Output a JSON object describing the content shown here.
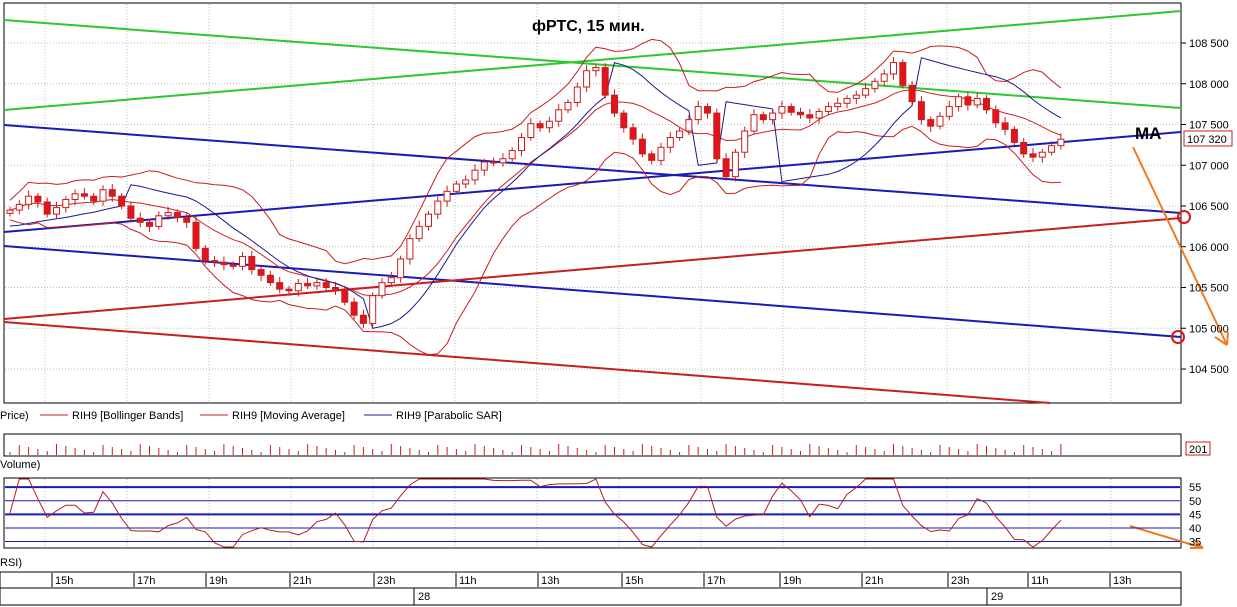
{
  "chart_data": {
    "type": "candlestick",
    "title": "фРТС,  15 мин.",
    "annotation_ma": "MA",
    "y_ticks": [
      104500,
      105000,
      105500,
      106000,
      106500,
      107000,
      107500,
      108000,
      108500
    ],
    "y_tick_labels": [
      "104 500",
      "105 000",
      "105 500",
      "106 000",
      "106 500",
      "107 000",
      "107 500",
      "108 000",
      "108 500"
    ],
    "ylim": [
      104100,
      108960
    ],
    "last_price_label": "107 320",
    "last_price": 107320,
    "legend": [
      "Price)",
      "RIH9 [Bollinger Bands]",
      "RIH9 [Moving Average]",
      "RIH9 [Parabolic SAR]"
    ],
    "colors": {
      "bull": "#ffffff",
      "bear": "#e0141c",
      "bollinger": "#c81e1e",
      "ma": "#d02020",
      "sar": "#1a1a8c",
      "green_lines": "#2dc82d",
      "blue_lines": "#1a1ab4",
      "red_lines": "#c81e1e",
      "forecast": "#f07a1e",
      "rsi": "#b01e1e",
      "rsi_levels": "#1a1ab4"
    },
    "candles_close": [
      106450,
      106520,
      106620,
      106550,
      106400,
      106480,
      106580,
      106650,
      106620,
      106560,
      106700,
      106620,
      106500,
      106350,
      106300,
      106250,
      106380,
      106420,
      106360,
      106300,
      105980,
      105830,
      105810,
      105780,
      105760,
      105880,
      105720,
      105650,
      105560,
      105480,
      105460,
      105550,
      105520,
      105560,
      105500,
      105480,
      105320,
      105160,
      105060,
      105400,
      105560,
      105620,
      105850,
      106100,
      106250,
      106400,
      106560,
      106680,
      106770,
      106820,
      106940,
      107040,
      107030,
      107080,
      107180,
      107340,
      107510,
      107460,
      107540,
      107680,
      107770,
      107960,
      108160,
      108200,
      107860,
      107640,
      107460,
      107320,
      107140,
      107060,
      107220,
      107340,
      107420,
      107560,
      107720,
      107640,
      107080,
      106860,
      107160,
      107420,
      107620,
      107560,
      107640,
      107720,
      107650,
      107620,
      107580,
      107660,
      107720,
      107760,
      107820,
      107860,
      107940,
      108030,
      108120,
      108260,
      107980,
      107780,
      107560,
      107480,
      107600,
      107720,
      107840,
      107740,
      107820,
      107680,
      107520,
      107440,
      107280,
      107140,
      107100,
      107160,
      107240,
      107320
    ],
    "rsi_levels": [
      35,
      40,
      45,
      50,
      55
    ],
    "rsi_labels": [
      "35",
      "40",
      "45",
      "50",
      "55"
    ],
    "volume_label": "201",
    "panel_labels": {
      "volume": "Volume)",
      "rsi": "RSI)"
    },
    "x_tick_labels": [
      "15h",
      "17h",
      "19h",
      "21h",
      "23h",
      "11h",
      "13h",
      "15h",
      "17h",
      "19h",
      "21h",
      "23h",
      "11h",
      "13h"
    ],
    "day_labels": [
      "28",
      "29"
    ]
  }
}
